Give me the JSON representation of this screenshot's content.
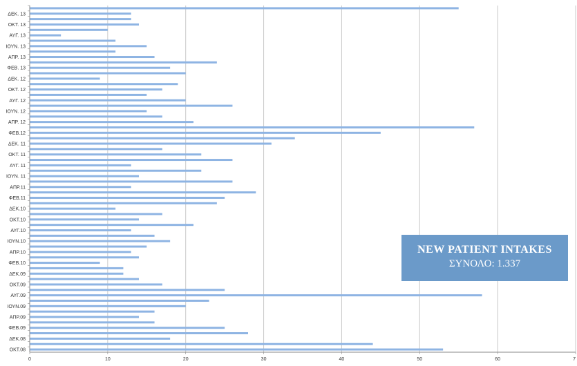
{
  "chart_data": {
    "type": "bar",
    "orientation": "horizontal",
    "annotation": {
      "title": "NEW PATIENT INTAKES",
      "subtitle": "ΣΥΝΟΛΟ: 1.337"
    },
    "xlim": [
      0,
      70
    ],
    "xticks": [
      "0",
      "10",
      "20",
      "30",
      "40",
      "50",
      "60",
      "7"
    ],
    "bar_color": "#8eb4e3",
    "accent_color": "#6b9ac9",
    "categories": [
      "",
      "ΔΕΚ. 13",
      "",
      "ΟΚΤ. 13",
      "",
      "ΑΥΓ. 13",
      "",
      "ΙΟΥΝ. 13",
      "",
      "ΑΠΡ. 13",
      "",
      "ΦΕΒ. 13",
      "",
      "ΔΕΚ. 12",
      "",
      "ΟΚΤ. 12",
      "",
      "ΑΥΓ. 12",
      "",
      "ΙΟΥΝ. 12",
      "",
      "ΑΠΡ. 12",
      "",
      "ΦΕΒ.12",
      "",
      "ΔΕΚ. 11",
      "",
      "ΟΚΤ. 11",
      "",
      "ΑΥΓ. 11",
      "",
      "ΙΟΥΝ. 11",
      "",
      "ΑΠΡ.11",
      "",
      "ΦΕΒ.11",
      "",
      "ΔΕΚ.10",
      "",
      "ΟΚΤ.10",
      "",
      "ΑΥΓ.10",
      "",
      "ΙΟΥΝ.10",
      "",
      "ΑΠΡ.10",
      "",
      "ΦΕΒ.10",
      "",
      "ΔΕΚ.09",
      "",
      "ΟΚΤ.09",
      "",
      "ΑΥΓ.09",
      "",
      "ΙΟΥΝ.09",
      "",
      "ΑΠΡ.09",
      "",
      "ΦΕΒ.09",
      "",
      "ΔΕΚ.08",
      "",
      "ΟΚΤ.08"
    ],
    "values": [
      55,
      13,
      13,
      14,
      10,
      4,
      11,
      15,
      11,
      16,
      24,
      18,
      20,
      9,
      19,
      17,
      15,
      20,
      26,
      15,
      17,
      21,
      57,
      45,
      34,
      31,
      17,
      22,
      26,
      13,
      22,
      14,
      26,
      13,
      29,
      25,
      24,
      11,
      17,
      14,
      21,
      13,
      16,
      18,
      15,
      13,
      14,
      9,
      12,
      12,
      14,
      17,
      25,
      58,
      23,
      20,
      16,
      14,
      16,
      25,
      28,
      18,
      44,
      53
    ]
  }
}
